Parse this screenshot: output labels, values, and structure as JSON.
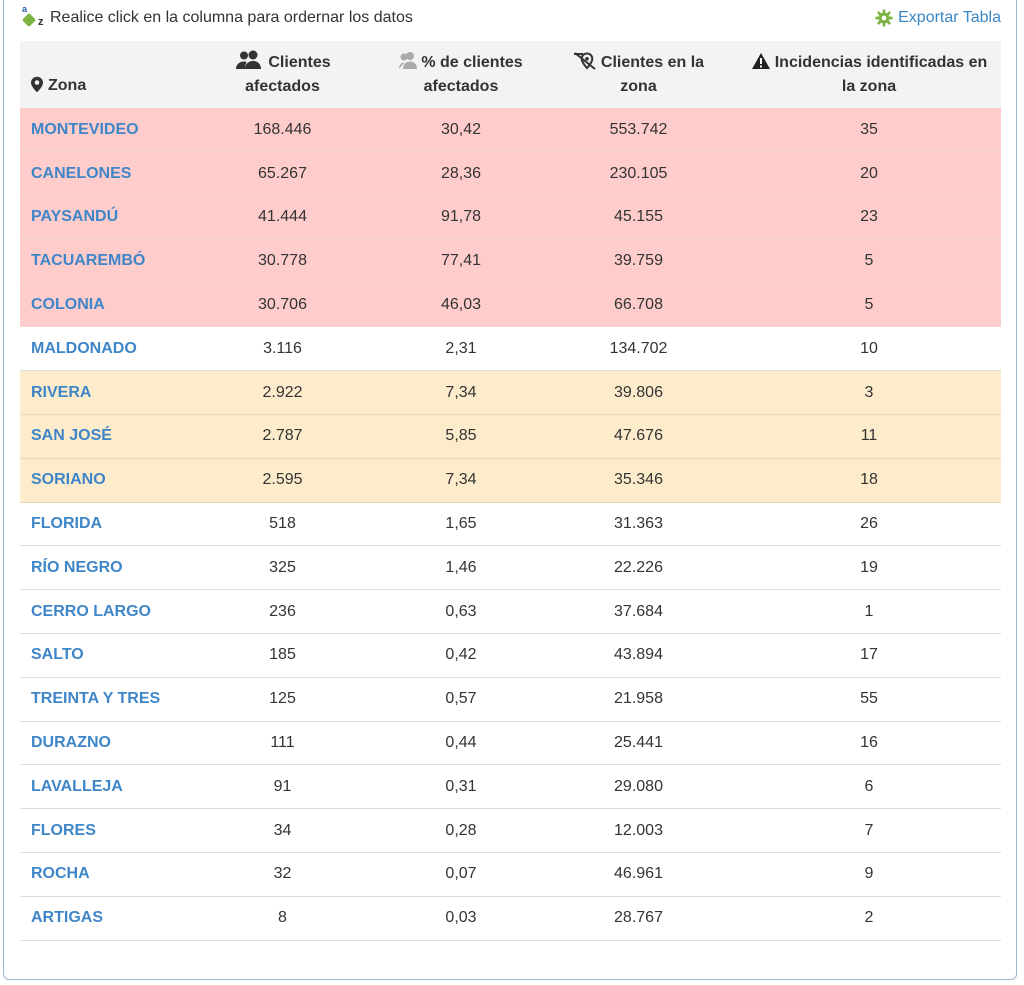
{
  "toolbar": {
    "sort_hint": "Realice click en la columna para ordernar los datos",
    "sort_icon_letter_a": "a",
    "sort_icon_letter_z": "z",
    "export_label": "Exportar Tabla"
  },
  "table": {
    "headers": {
      "zona": "Zona",
      "clientes_afectados_1": "Clientes",
      "clientes_afectados_2": "afectados",
      "pct_1": "% de clientes",
      "pct_2": "afectados",
      "clientes_zona_1": "Clientes en la",
      "clientes_zona_2": "zona",
      "incidencias_1": "Incidencias identificadas en",
      "incidencias_2": "la zona"
    },
    "rows": [
      {
        "zona": "MONTEVIDEO",
        "afectados": "168.446",
        "pct": "30,42",
        "clientes": "553.742",
        "incidencias": "35",
        "level": "red"
      },
      {
        "zona": "CANELONES",
        "afectados": "65.267",
        "pct": "28,36",
        "clientes": "230.105",
        "incidencias": "20",
        "level": "red"
      },
      {
        "zona": "PAYSANDÚ",
        "afectados": "41.444",
        "pct": "91,78",
        "clientes": "45.155",
        "incidencias": "23",
        "level": "red"
      },
      {
        "zona": "TACUAREMBÓ",
        "afectados": "30.778",
        "pct": "77,41",
        "clientes": "39.759",
        "incidencias": "5",
        "level": "red"
      },
      {
        "zona": "COLONIA",
        "afectados": "30.706",
        "pct": "46,03",
        "clientes": "66.708",
        "incidencias": "5",
        "level": "red"
      },
      {
        "zona": "MALDONADO",
        "afectados": "3.116",
        "pct": "2,31",
        "clientes": "134.702",
        "incidencias": "10",
        "level": "none"
      },
      {
        "zona": "RIVERA",
        "afectados": "2.922",
        "pct": "7,34",
        "clientes": "39.806",
        "incidencias": "3",
        "level": "amber"
      },
      {
        "zona": "SAN JOSÉ",
        "afectados": "2.787",
        "pct": "5,85",
        "clientes": "47.676",
        "incidencias": "11",
        "level": "amber"
      },
      {
        "zona": "SORIANO",
        "afectados": "2.595",
        "pct": "7,34",
        "clientes": "35.346",
        "incidencias": "18",
        "level": "amber"
      },
      {
        "zona": "FLORIDA",
        "afectados": "518",
        "pct": "1,65",
        "clientes": "31.363",
        "incidencias": "26",
        "level": "none"
      },
      {
        "zona": "RÍO NEGRO",
        "afectados": "325",
        "pct": "1,46",
        "clientes": "22.226",
        "incidencias": "19",
        "level": "none"
      },
      {
        "zona": "CERRO LARGO",
        "afectados": "236",
        "pct": "0,63",
        "clientes": "37.684",
        "incidencias": "1",
        "level": "none"
      },
      {
        "zona": "SALTO",
        "afectados": "185",
        "pct": "0,42",
        "clientes": "43.894",
        "incidencias": "17",
        "level": "none"
      },
      {
        "zona": "TREINTA Y TRES",
        "afectados": "125",
        "pct": "0,57",
        "clientes": "21.958",
        "incidencias": "55",
        "level": "none"
      },
      {
        "zona": "DURAZNO",
        "afectados": "111",
        "pct": "0,44",
        "clientes": "25.441",
        "incidencias": "16",
        "level": "none"
      },
      {
        "zona": "LAVALLEJA",
        "afectados": "91",
        "pct": "0,31",
        "clientes": "29.080",
        "incidencias": "6",
        "level": "none"
      },
      {
        "zona": "FLORES",
        "afectados": "34",
        "pct": "0,28",
        "clientes": "12.003",
        "incidencias": "7",
        "level": "none"
      },
      {
        "zona": "ROCHA",
        "afectados": "32",
        "pct": "0,07",
        "clientes": "46.961",
        "incidencias": "9",
        "level": "none"
      },
      {
        "zona": "ARTIGAS",
        "afectados": "8",
        "pct": "0,03",
        "clientes": "28.767",
        "incidencias": "2",
        "level": "none"
      }
    ]
  },
  "colors": {
    "link": "#3f86c8",
    "row_red": "#ffcccc",
    "row_amber": "#fdeccc",
    "header_bg": "#f3f3f3",
    "export_gear": "#7cb342"
  },
  "icons": {
    "sort": "az-sort-icon",
    "export": "gear-icon",
    "zona": "map-pin-icon",
    "clientes_afectados": "users-icon",
    "pct": "users-percent-icon",
    "clientes_zona": "location-off-icon",
    "incidencias": "warning-icon"
  }
}
